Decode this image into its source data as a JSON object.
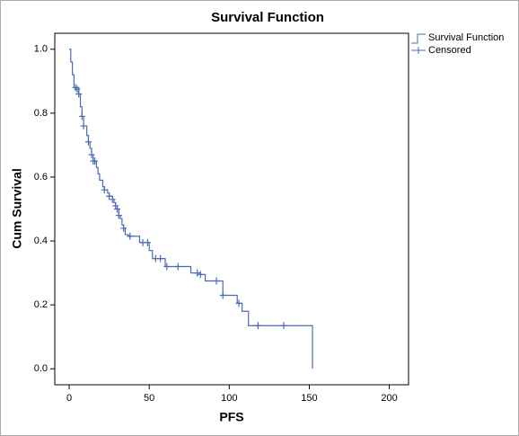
{
  "chart_data": {
    "type": "km-step",
    "title": "Survival Function",
    "x_label": "PFS",
    "y_label": "Cum Survival",
    "xlim": [
      -9,
      212
    ],
    "ylim": [
      -0.05,
      1.05
    ],
    "xticks": [
      0,
      50,
      100,
      150,
      200
    ],
    "yticks": [
      {
        "value": 0,
        "label": "0.0"
      },
      0.2,
      0.4,
      0.6,
      0.8,
      {
        "value": 1,
        "label": "1.0"
      }
    ],
    "series": [
      {
        "name": "Survival Function",
        "color": "#4a6cb3",
        "x": [
          0,
          1,
          2,
          3,
          6,
          7,
          8,
          9,
          11,
          12,
          13,
          14,
          15,
          17,
          18,
          19,
          21,
          22,
          24,
          25,
          27,
          28,
          29,
          30,
          31,
          32,
          33,
          34,
          35,
          37,
          44,
          50,
          52,
          60,
          76,
          82,
          85,
          96,
          105,
          108,
          112,
          152
        ],
        "values": [
          1.0,
          0.96,
          0.92,
          0.88,
          0.86,
          0.82,
          0.79,
          0.76,
          0.73,
          0.71,
          0.69,
          0.67,
          0.65,
          0.63,
          0.61,
          0.59,
          0.57,
          0.56,
          0.55,
          0.54,
          0.53,
          0.52,
          0.51,
          0.5,
          0.48,
          0.47,
          0.45,
          0.44,
          0.42,
          0.415,
          0.395,
          0.37,
          0.345,
          0.32,
          0.3,
          0.295,
          0.275,
          0.23,
          0.205,
          0.18,
          0.135,
          0.0
        ]
      },
      {
        "name": "Censored",
        "color": "#4a6cb3",
        "x": [
          4,
          5,
          6,
          8,
          9,
          12,
          14,
          15,
          16,
          22,
          25,
          27,
          29,
          30,
          31,
          34,
          38,
          46,
          49,
          54,
          57,
          61,
          68,
          80,
          82,
          92,
          96,
          106,
          118,
          134
        ],
        "values": [
          0.88,
          0.875,
          0.86,
          0.79,
          0.76,
          0.71,
          0.67,
          0.65,
          0.65,
          0.56,
          0.54,
          0.53,
          0.51,
          0.5,
          0.48,
          0.44,
          0.415,
          0.395,
          0.395,
          0.345,
          0.345,
          0.32,
          0.32,
          0.3,
          0.295,
          0.275,
          0.23,
          0.205,
          0.135,
          0.135
        ]
      }
    ]
  }
}
